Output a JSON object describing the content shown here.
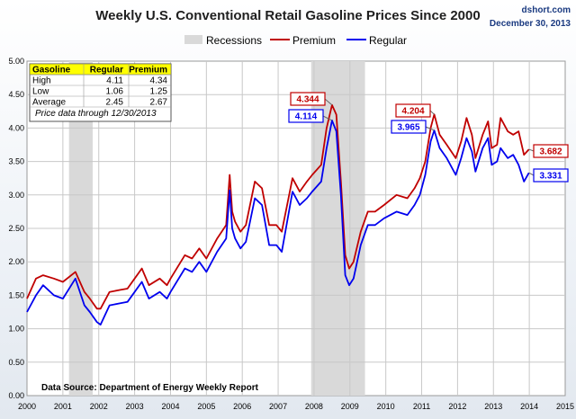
{
  "chart_data": {
    "type": "line",
    "title": "Weekly U.S. Conventional Retail Gasoline Prices Since 2000",
    "source_site": "dshort.com",
    "date": "December 30, 2013",
    "source_note": "Data Source: Department of Energy Weekly Report",
    "legend": [
      "Recessions",
      "Premium",
      "Regular"
    ],
    "legend_position": "top-center",
    "x_ticks": [
      "2000",
      "2001",
      "2002",
      "2003",
      "2004",
      "2005",
      "2006",
      "2007",
      "2008",
      "2009",
      "2010",
      "2011",
      "2012",
      "2013",
      "2014",
      "2015"
    ],
    "y_ticks": [
      "0.00",
      "0.50",
      "1.00",
      "1.50",
      "2.00",
      "2.50",
      "3.00",
      "3.50",
      "4.00",
      "4.50",
      "5.00"
    ],
    "xlim": [
      2000,
      2015
    ],
    "ylim": [
      0,
      5
    ],
    "grid": true,
    "recessions": [
      [
        2001.17,
        2001.83
      ],
      [
        2007.92,
        2009.42
      ]
    ],
    "colors": {
      "premium": "#c00000",
      "regular": "#0000ee",
      "recession": "#d9d9d9"
    },
    "series": [
      {
        "name": "Premium",
        "color": "#c00000",
        "x": [
          2000.0,
          2000.25,
          2000.45,
          2000.75,
          2001.0,
          2001.35,
          2001.6,
          2001.75,
          2001.95,
          2002.05,
          2002.3,
          2002.6,
          2002.8,
          2003.0,
          2003.2,
          2003.4,
          2003.7,
          2003.9,
          2004.0,
          2004.4,
          2004.6,
          2004.8,
          2005.0,
          2005.3,
          2005.55,
          2005.65,
          2005.72,
          2005.8,
          2005.95,
          2006.1,
          2006.35,
          2006.55,
          2006.75,
          2006.95,
          2007.1,
          2007.4,
          2007.6,
          2007.8,
          2007.95,
          2008.2,
          2008.35,
          2008.5,
          2008.62,
          2008.75,
          2008.87,
          2008.98,
          2009.1,
          2009.3,
          2009.5,
          2009.7,
          2009.95,
          2010.3,
          2010.6,
          2010.8,
          2010.95,
          2011.1,
          2011.25,
          2011.35,
          2011.5,
          2011.7,
          2011.95,
          2012.1,
          2012.25,
          2012.4,
          2012.5,
          2012.7,
          2012.85,
          2012.95,
          2013.1,
          2013.2,
          2013.4,
          2013.55,
          2013.7,
          2013.85,
          2013.99
        ],
        "values": [
          1.45,
          1.75,
          1.8,
          1.75,
          1.7,
          1.85,
          1.55,
          1.45,
          1.3,
          1.3,
          1.55,
          1.58,
          1.6,
          1.75,
          1.9,
          1.65,
          1.75,
          1.65,
          1.75,
          2.1,
          2.05,
          2.2,
          2.05,
          2.35,
          2.55,
          3.3,
          2.75,
          2.6,
          2.45,
          2.55,
          3.2,
          3.1,
          2.55,
          2.55,
          2.45,
          3.25,
          3.05,
          3.2,
          3.3,
          3.45,
          4.0,
          4.344,
          4.2,
          3.2,
          2.1,
          1.9,
          2.0,
          2.45,
          2.75,
          2.75,
          2.85,
          3.0,
          2.95,
          3.1,
          3.25,
          3.5,
          4.0,
          4.204,
          3.9,
          3.75,
          3.55,
          3.8,
          4.15,
          3.9,
          3.55,
          3.9,
          4.1,
          3.7,
          3.75,
          4.15,
          3.95,
          3.9,
          3.95,
          3.6,
          3.682
        ]
      },
      {
        "name": "Regular",
        "color": "#0000ee",
        "x": [
          2000.0,
          2000.25,
          2000.45,
          2000.75,
          2001.0,
          2001.35,
          2001.6,
          2001.75,
          2001.95,
          2002.05,
          2002.3,
          2002.6,
          2002.8,
          2003.0,
          2003.2,
          2003.4,
          2003.7,
          2003.9,
          2004.0,
          2004.4,
          2004.6,
          2004.8,
          2005.0,
          2005.3,
          2005.55,
          2005.65,
          2005.72,
          2005.8,
          2005.95,
          2006.1,
          2006.35,
          2006.55,
          2006.75,
          2006.95,
          2007.1,
          2007.4,
          2007.6,
          2007.8,
          2007.95,
          2008.2,
          2008.35,
          2008.5,
          2008.62,
          2008.75,
          2008.87,
          2008.98,
          2009.1,
          2009.3,
          2009.5,
          2009.7,
          2009.95,
          2010.3,
          2010.6,
          2010.8,
          2010.95,
          2011.1,
          2011.25,
          2011.35,
          2011.5,
          2011.7,
          2011.95,
          2012.1,
          2012.25,
          2012.4,
          2012.5,
          2012.7,
          2012.85,
          2012.95,
          2013.1,
          2013.2,
          2013.4,
          2013.55,
          2013.7,
          2013.85,
          2013.99
        ],
        "values": [
          1.25,
          1.5,
          1.65,
          1.5,
          1.45,
          1.75,
          1.35,
          1.25,
          1.1,
          1.06,
          1.35,
          1.38,
          1.4,
          1.55,
          1.7,
          1.45,
          1.55,
          1.45,
          1.55,
          1.9,
          1.85,
          2.0,
          1.85,
          2.15,
          2.35,
          3.07,
          2.5,
          2.35,
          2.2,
          2.3,
          2.95,
          2.85,
          2.25,
          2.25,
          2.15,
          3.05,
          2.85,
          2.95,
          3.05,
          3.2,
          3.7,
          4.114,
          3.95,
          3.0,
          1.8,
          1.65,
          1.75,
          2.25,
          2.55,
          2.55,
          2.65,
          2.75,
          2.7,
          2.85,
          3.0,
          3.3,
          3.8,
          3.965,
          3.7,
          3.55,
          3.3,
          3.55,
          3.85,
          3.65,
          3.35,
          3.7,
          3.85,
          3.45,
          3.5,
          3.7,
          3.55,
          3.6,
          3.45,
          3.2,
          3.331
        ]
      }
    ],
    "annotations": [
      {
        "label": "4.344",
        "series": "Premium",
        "x": 2008.5,
        "y": 4.344
      },
      {
        "label": "4.114",
        "series": "Regular",
        "x": 2008.5,
        "y": 4.114
      },
      {
        "label": "4.204",
        "series": "Premium",
        "x": 2011.35,
        "y": 4.204
      },
      {
        "label": "3.965",
        "series": "Regular",
        "x": 2011.35,
        "y": 3.965
      },
      {
        "label": "3.682",
        "series": "Premium",
        "x": 2013.99,
        "y": 3.682
      },
      {
        "label": "3.331",
        "series": "Regular",
        "x": 2013.99,
        "y": 3.331
      }
    ],
    "table": {
      "headers": [
        "Gasoline",
        "Regular",
        "Premium"
      ],
      "rows": [
        [
          "High",
          "4.11",
          "4.34"
        ],
        [
          "Low",
          "1.06",
          "1.25"
        ],
        [
          "Average",
          "2.45",
          "2.67"
        ]
      ],
      "note": "Price data through 12/30/2013"
    }
  }
}
